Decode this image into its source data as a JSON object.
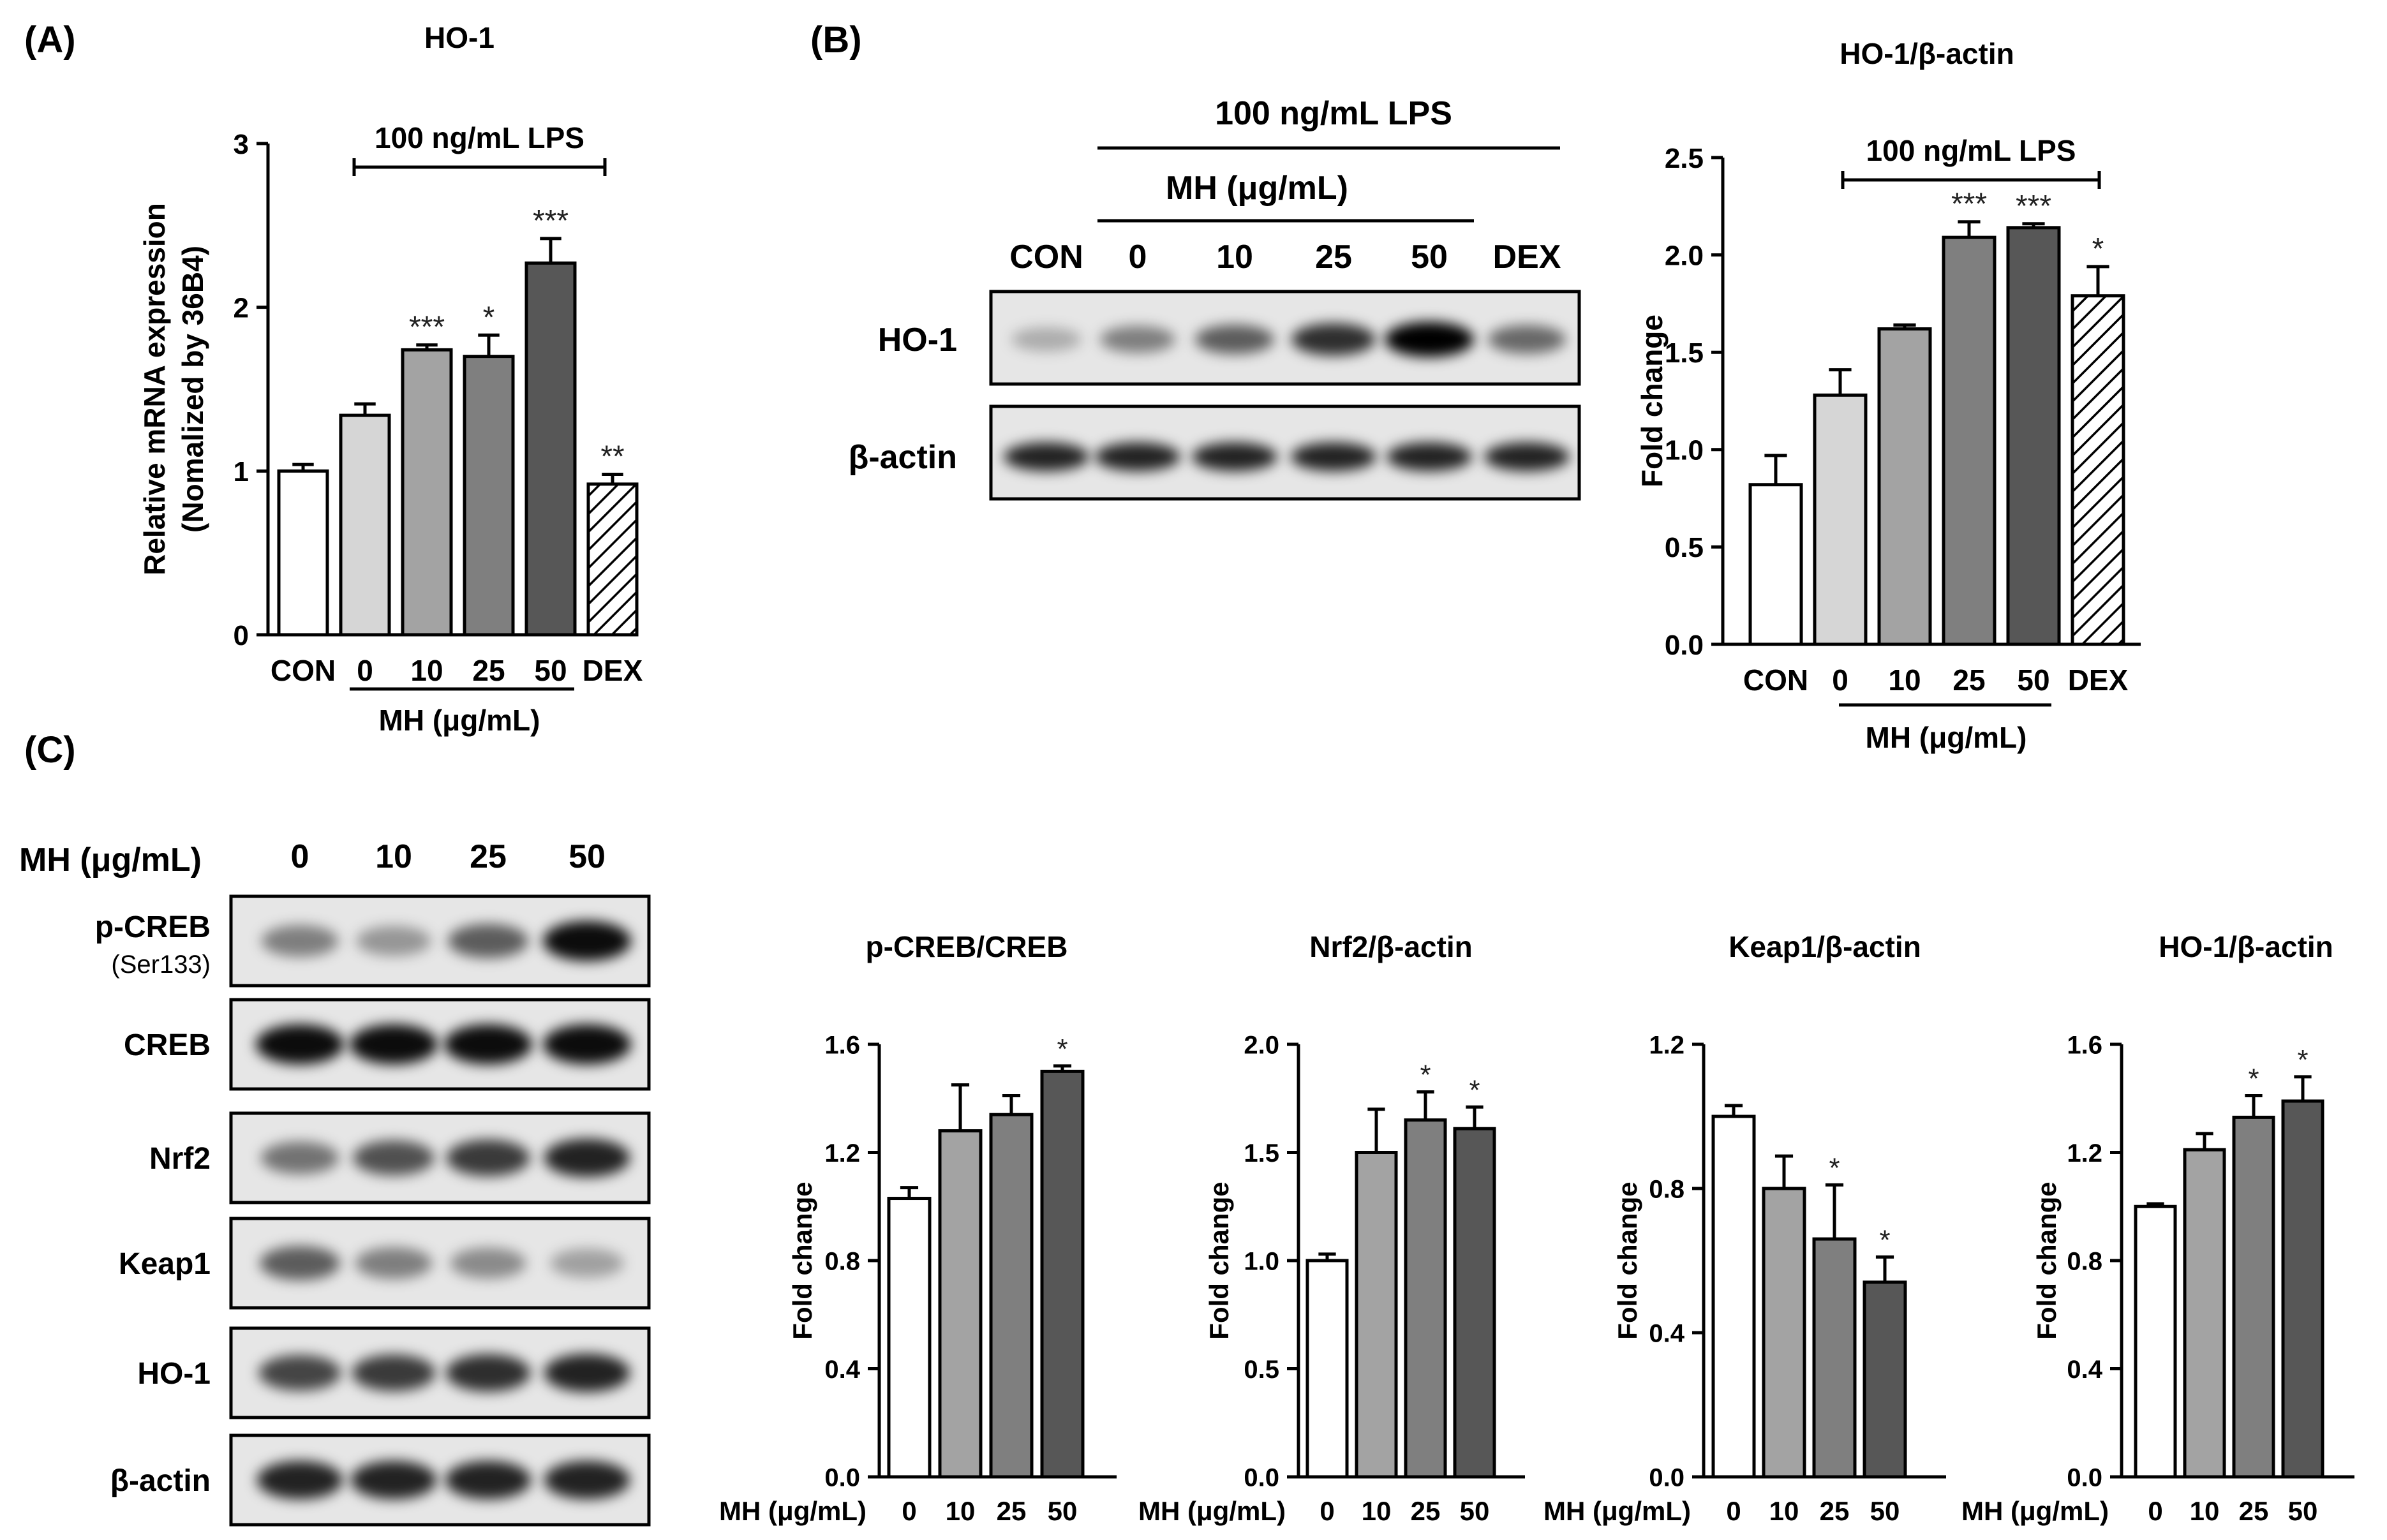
{
  "panels": {
    "a": "(A)",
    "b": "(B)",
    "c": "(C)"
  },
  "colors": {
    "con": "#ffffff",
    "mh0": "#d6d6d6",
    "mh10": "#a3a3a3",
    "mh25": "#7f7f7f",
    "mh50": "#575757",
    "dex": "hatched",
    "bar_outline": "#000000"
  },
  "blot_b": {
    "lps": "100 ng/mL LPS",
    "mh": "MH (μg/mL)",
    "lanes": [
      "CON",
      "0",
      "10",
      "25",
      "50",
      "DEX"
    ],
    "rows": [
      {
        "label": "HO-1",
        "intensity": [
          0.25,
          0.45,
          0.6,
          0.8,
          1.0,
          0.55
        ]
      },
      {
        "label": "β-actin",
        "intensity": [
          0.85,
          0.85,
          0.85,
          0.85,
          0.85,
          0.85
        ]
      }
    ]
  },
  "blot_c": {
    "header_label": "MH (μg/mL)",
    "lanes": [
      "0",
      "10",
      "25",
      "50"
    ],
    "rows": [
      {
        "label": "p-CREB",
        "sublabel": "(Ser133)",
        "intensity": [
          0.45,
          0.35,
          0.6,
          0.95
        ]
      },
      {
        "label": "CREB",
        "sublabel": "",
        "intensity": [
          0.95,
          0.95,
          0.95,
          0.95
        ]
      },
      {
        "label": "Nrf2",
        "sublabel": "",
        "intensity": [
          0.5,
          0.65,
          0.75,
          0.85
        ]
      },
      {
        "label": "Keap1",
        "sublabel": "",
        "intensity": [
          0.6,
          0.45,
          0.4,
          0.3
        ]
      },
      {
        "label": "HO-1",
        "sublabel": "",
        "intensity": [
          0.7,
          0.75,
          0.8,
          0.85
        ]
      },
      {
        "label": "β-actin",
        "sublabel": "",
        "intensity": [
          0.85,
          0.85,
          0.85,
          0.85
        ]
      }
    ]
  },
  "chart_data": [
    {
      "id": "A",
      "type": "bar",
      "title": "HO-1",
      "ylabel": [
        "Relative mRNA expression",
        "(Nomalized by 36B4)"
      ],
      "xlabel": "MH (μg/mL)",
      "treatment": "100 ng/mL LPS",
      "categories": [
        "CON",
        "0",
        "10",
        "25",
        "50",
        "DEX"
      ],
      "values": [
        1.0,
        1.34,
        1.74,
        1.7,
        2.27,
        0.92
      ],
      "errors": [
        0.04,
        0.07,
        0.03,
        0.13,
        0.15,
        0.06
      ],
      "significance": [
        "",
        "",
        "***",
        "*",
        "***",
        "**"
      ],
      "ylim": [
        0,
        3
      ],
      "yticks": [
        "0",
        "1",
        "2",
        "3"
      ]
    },
    {
      "id": "B",
      "type": "bar",
      "title": "HO-1/β-actin",
      "ylabel": "Fold change",
      "xlabel": "MH (μg/mL)",
      "treatment": "100 ng/mL LPS",
      "categories": [
        "CON",
        "0",
        "10",
        "25",
        "50",
        "DEX"
      ],
      "values": [
        0.82,
        1.28,
        1.62,
        2.09,
        2.14,
        1.79
      ],
      "errors": [
        0.15,
        0.13,
        0.02,
        0.08,
        0.02,
        0.15
      ],
      "significance": [
        "",
        "",
        "",
        "***",
        "***",
        "*"
      ],
      "ylim": [
        0,
        2.5
      ],
      "yticks": [
        "0.0",
        "0.5",
        "1.0",
        "1.5",
        "2.0",
        "2.5"
      ]
    },
    {
      "id": "C1",
      "type": "bar",
      "title": "p-CREB/CREB",
      "ylabel": "Fold change",
      "xlabel": "MH (μg/mL)",
      "categories": [
        "0",
        "10",
        "25",
        "50"
      ],
      "values": [
        1.03,
        1.28,
        1.34,
        1.5
      ],
      "errors": [
        0.04,
        0.17,
        0.07,
        0.02
      ],
      "significance": [
        "",
        "",
        "",
        "*"
      ],
      "ylim": [
        0,
        1.6
      ],
      "yticks": [
        "0.0",
        "0.4",
        "0.8",
        "1.2",
        "1.6"
      ]
    },
    {
      "id": "C2",
      "type": "bar",
      "title": "Nrf2/β-actin",
      "ylabel": "Fold change",
      "xlabel": "MH (μg/mL)",
      "categories": [
        "0",
        "10",
        "25",
        "50"
      ],
      "values": [
        1.0,
        1.5,
        1.65,
        1.61
      ],
      "errors": [
        0.03,
        0.2,
        0.13,
        0.1
      ],
      "significance": [
        "",
        "",
        "*",
        "*"
      ],
      "ylim": [
        0,
        2.0
      ],
      "yticks": [
        "0.0",
        "0.5",
        "1.0",
        "1.5",
        "2.0"
      ]
    },
    {
      "id": "C3",
      "type": "bar",
      "title": "Keap1/β-actin",
      "ylabel": "Fold change",
      "xlabel": "MH (μg/mL)",
      "categories": [
        "0",
        "10",
        "25",
        "50"
      ],
      "values": [
        1.0,
        0.8,
        0.66,
        0.54
      ],
      "errors": [
        0.03,
        0.09,
        0.15,
        0.07
      ],
      "significance": [
        "",
        "",
        "*",
        "*"
      ],
      "ylim": [
        0,
        1.2
      ],
      "yticks": [
        "0.0",
        "0.4",
        "0.8",
        "1.2"
      ]
    },
    {
      "id": "C4",
      "type": "bar",
      "title": "HO-1/β-actin",
      "ylabel": "Fold change",
      "xlabel": "MH (μg/mL)",
      "categories": [
        "0",
        "10",
        "25",
        "50"
      ],
      "values": [
        1.0,
        1.21,
        1.33,
        1.39
      ],
      "errors": [
        0.01,
        0.06,
        0.08,
        0.09
      ],
      "significance": [
        "",
        "",
        "*",
        "*"
      ],
      "ylim": [
        0,
        1.6
      ],
      "yticks": [
        "0.0",
        "0.4",
        "0.8",
        "1.2",
        "1.6"
      ]
    }
  ]
}
